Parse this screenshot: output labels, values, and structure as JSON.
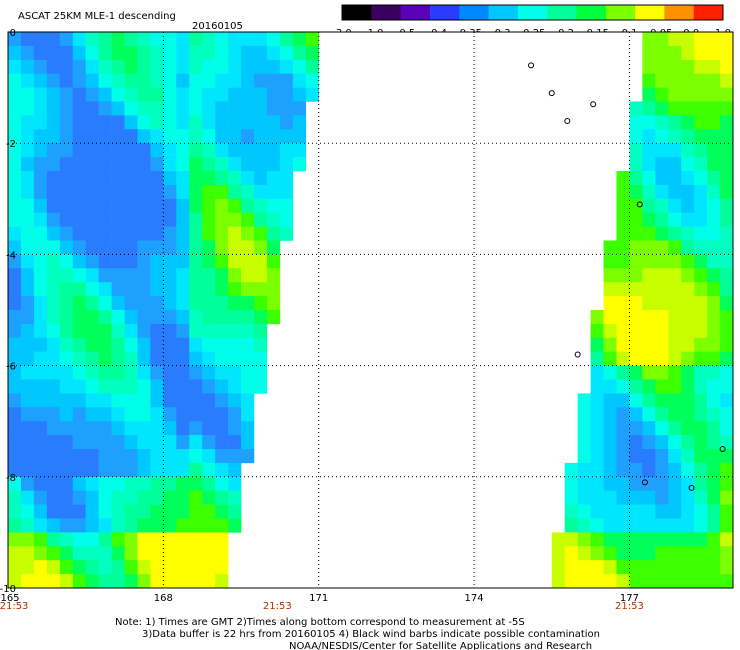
{
  "title": "ASCAT 25KM MLE-1 descending",
  "date": "20160105",
  "colorbar": {
    "ticks": [
      "-3.0",
      "-1.0",
      "-0.5",
      "-0.4",
      "-0.35",
      "-0.3",
      "-0.25",
      "-0.2",
      "-0.15",
      "-0.1",
      "-0.05",
      "0.0",
      "1.0"
    ],
    "colors": [
      "#000000",
      "#3a0060",
      "#5a00b8",
      "#2a3cff",
      "#0088ff",
      "#00c8ff",
      "#00ffe8",
      "#00ff9a",
      "#00ff3c",
      "#7cff00",
      "#ffff00",
      "#ff9000",
      "#ff2000"
    ]
  },
  "chart_data": {
    "type": "heatmap",
    "title": "ASCAT 25KM MLE-1 descending",
    "subtitle": "20160105",
    "x_ticks": [
      "165",
      "168",
      "171",
      "174",
      "177"
    ],
    "y_ticks": [
      "0",
      "-2",
      "-4",
      "-6",
      "-8",
      "-10"
    ],
    "xlim": [
      165,
      179
    ],
    "ylim": [
      -10,
      0
    ],
    "grid": true,
    "time_labels": [
      {
        "lon": 165,
        "time": "21:53"
      },
      {
        "lon": 170.2,
        "time": "21:53"
      },
      {
        "lon": 177,
        "time": "21:53"
      }
    ],
    "swaths": [
      {
        "name": "west",
        "lon_start": 165,
        "edge_lon_at_lat0": 171.2,
        "edge_lon_at_lat_minus10": 169.3
      },
      {
        "name": "east",
        "lon_end": 179,
        "edge_lon_at_lat0": 177.2,
        "edge_lon_at_lat_minus10": 175.3
      }
    ],
    "value_range_note": "mostly -0.35 to -0.1"
  },
  "notes": [
    "Note: 1) Times are GMT 2)Times along bottom correspond to measurement at -5S",
    "3)Data buffer is 22 hrs from 20160105 4) Black wind barbs indicate possible contamination",
    "NOAA/NESDIS/Center for Satellite Applications and Research"
  ]
}
